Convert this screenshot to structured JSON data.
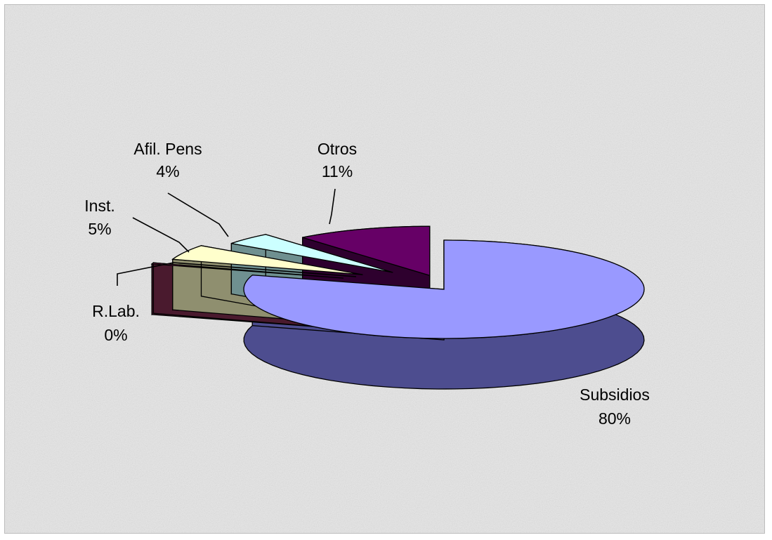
{
  "chart_data": {
    "type": "pie",
    "style": "3d-exploded",
    "slices": [
      {
        "label": "Subsidios",
        "percent_label": "80%",
        "value": 80,
        "color": "#9999ff",
        "side_color": "#4d4d8f"
      },
      {
        "label": "R.Lab.",
        "percent_label": "0%",
        "value": 0.4,
        "color": "#993366",
        "side_color": "#4a1a2e"
      },
      {
        "label": "Inst.",
        "percent_label": "5%",
        "value": 5,
        "color": "#ffffcc",
        "side_color": "#8f8f6f"
      },
      {
        "label": "Afil. Pens",
        "percent_label": "4%",
        "value": 4,
        "color": "#ccffff",
        "side_color": "#6f9090"
      },
      {
        "label": "Otros",
        "percent_label": "11%",
        "value": 11,
        "color": "#660066",
        "side_color": "#2e002e"
      }
    ],
    "legend": "none",
    "background": "#e9e9e9"
  }
}
